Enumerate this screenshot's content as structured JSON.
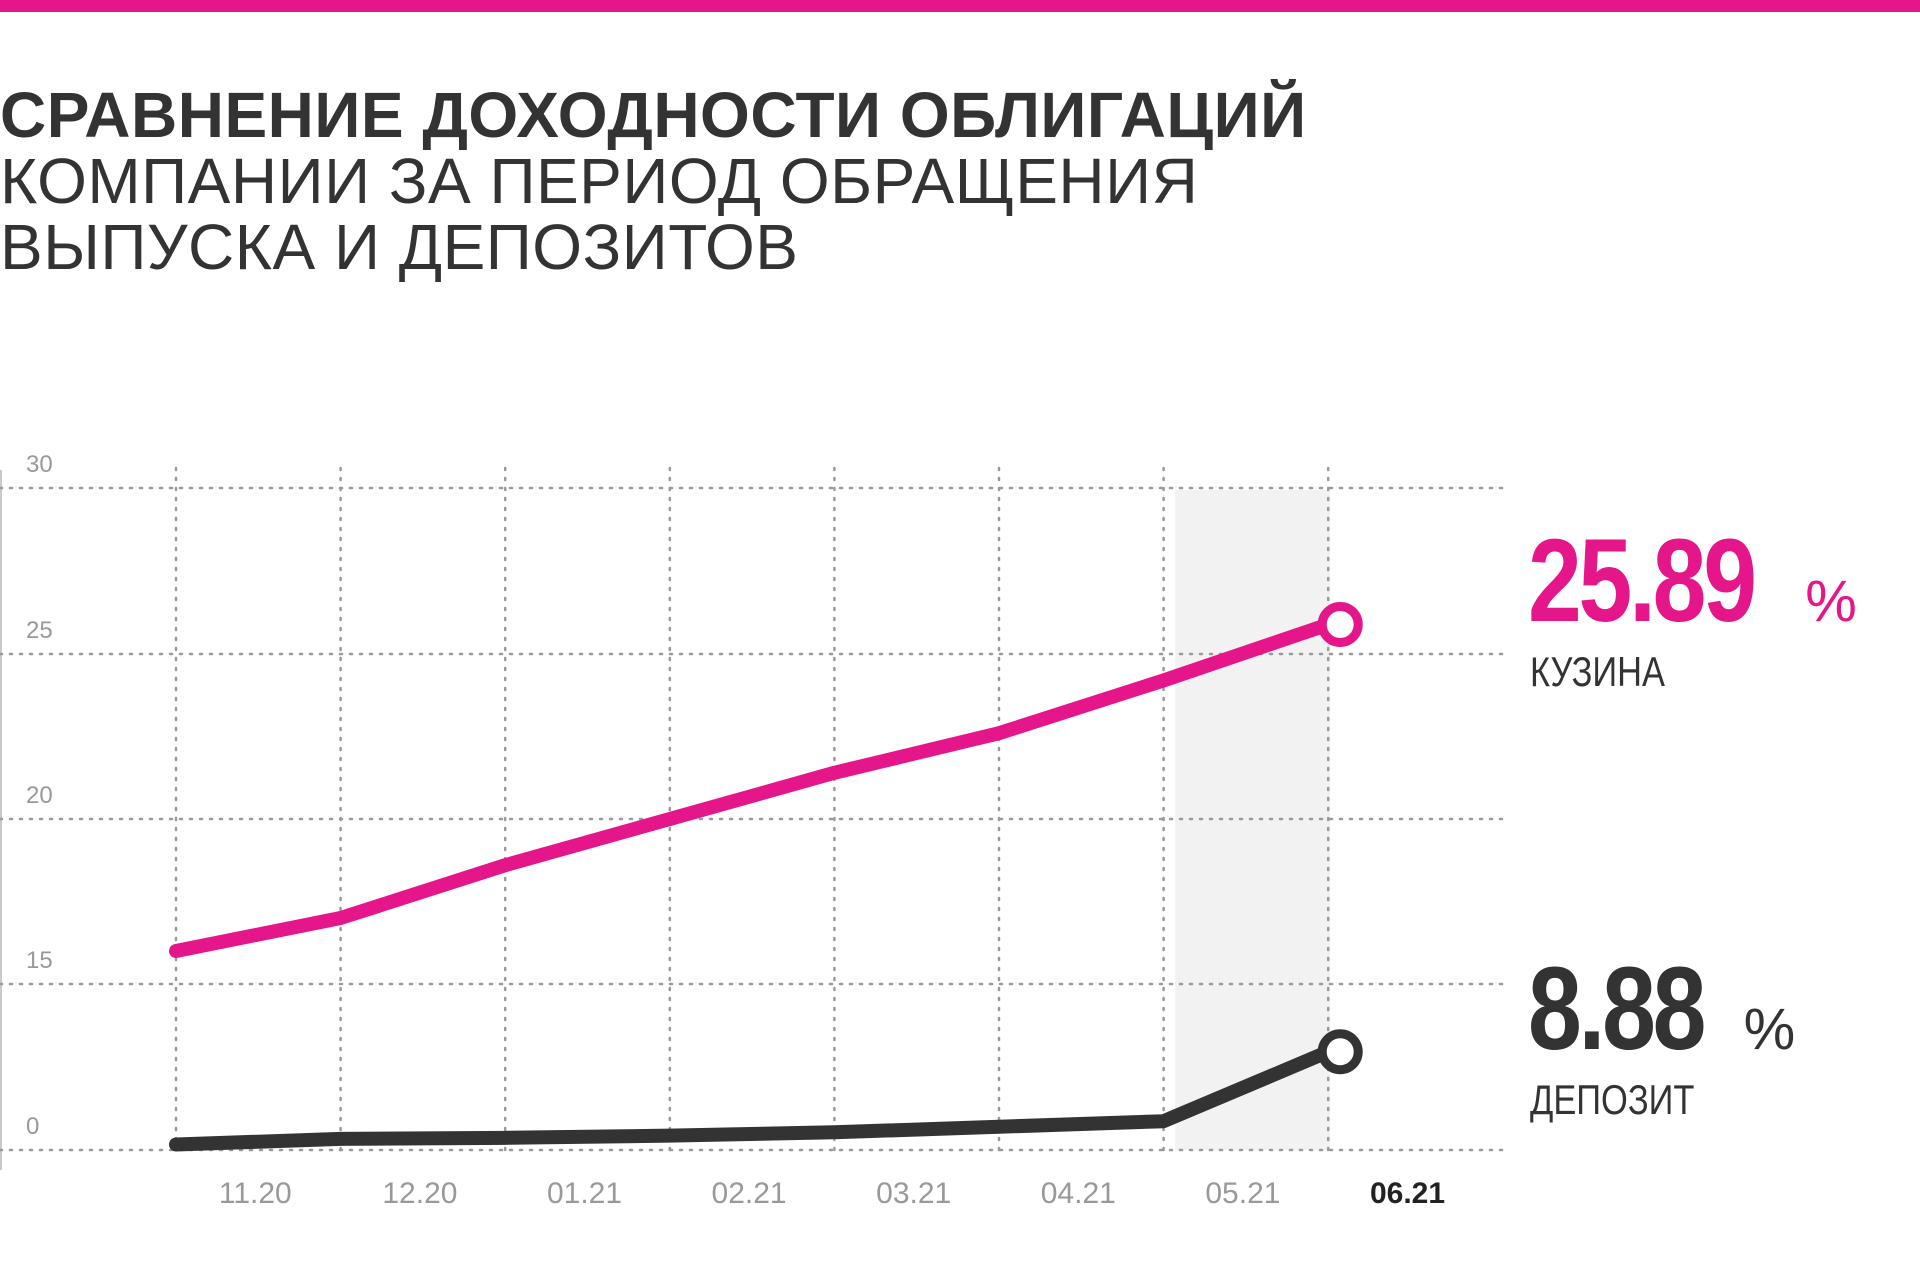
{
  "title": {
    "line1": "СРАВНЕНИЕ ДОХОДНОСТИ ОБЛИГАЦИЙ",
    "line2": "КОМПАНИИ ЗА ПЕРИОД ОБРАЩЕНИЯ",
    "line3": "ВЫПУСКА И ДЕПОЗИТОВ"
  },
  "colors": {
    "accent": "#e5158a",
    "dark": "#333333",
    "grid": "#9a9a9a",
    "highlight": "#f2f2f2"
  },
  "labels": {
    "kuzina_value": "25.89",
    "kuzina_unit": "%",
    "kuzina_name": "КУЗИНА",
    "deposit_value": "8.88",
    "deposit_unit": "%",
    "deposit_name": "ДЕПОЗИТ"
  },
  "chart_data": {
    "type": "line",
    "x_ticks": [
      "11.20",
      "12.20",
      "01.21",
      "02.21",
      "03.21",
      "04.21",
      "05.21",
      "06.21"
    ],
    "highlighted_tick": "06.21",
    "y_ticks": [
      "0",
      "15",
      "20",
      "25",
      "30"
    ],
    "grid": true,
    "series": [
      {
        "name": "КУЗИНА",
        "color": "#e5158a",
        "values": [
          16.0,
          17.0,
          18.6,
          20.0,
          21.4,
          22.6,
          24.2,
          25.89
        ]
      },
      {
        "name": "ДЕПОЗИТ",
        "color": "#333333",
        "values": [
          0.5,
          1.0,
          1.1,
          1.3,
          1.6,
          2.1,
          2.6,
          8.88
        ]
      }
    ]
  }
}
